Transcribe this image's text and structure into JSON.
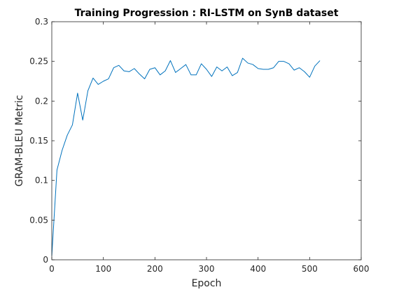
{
  "chart_data": {
    "type": "line",
    "title": "Training Progression : RI-LSTM on SynB dataset",
    "xlabel": "Epoch",
    "ylabel": "GRAM-BLEU Metric",
    "xlim": [
      0,
      600
    ],
    "ylim": [
      0,
      0.3
    ],
    "xticks": [
      0,
      100,
      200,
      300,
      400,
      500,
      600
    ],
    "yticks": [
      0,
      0.05,
      0.1,
      0.15,
      0.2,
      0.25,
      0.3
    ],
    "xtick_labels": [
      "0",
      "100",
      "200",
      "300",
      "400",
      "500",
      "600"
    ],
    "ytick_labels": [
      "0",
      "0.05",
      "0.1",
      "0.15",
      "0.2",
      "0.25",
      "0.3"
    ],
    "grid": false,
    "legend": "none",
    "series": [
      {
        "color": "#0072bd",
        "x": [
          0,
          10,
          20,
          30,
          40,
          50,
          60,
          70,
          80,
          90,
          100,
          110,
          120,
          130,
          140,
          150,
          160,
          170,
          180,
          190,
          200,
          210,
          220,
          230,
          240,
          250,
          260,
          270,
          280,
          290,
          300,
          310,
          320,
          330,
          340,
          350,
          360,
          370,
          380,
          390,
          400,
          410,
          420,
          430,
          440,
          450,
          460,
          470,
          480,
          490,
          500,
          510,
          520
        ],
        "y": [
          0.005,
          0.113,
          0.138,
          0.157,
          0.17,
          0.21,
          0.176,
          0.213,
          0.229,
          0.221,
          0.225,
          0.228,
          0.242,
          0.245,
          0.238,
          0.237,
          0.241,
          0.234,
          0.228,
          0.24,
          0.242,
          0.233,
          0.238,
          0.251,
          0.236,
          0.241,
          0.246,
          0.233,
          0.233,
          0.247,
          0.24,
          0.231,
          0.243,
          0.238,
          0.243,
          0.232,
          0.236,
          0.254,
          0.248,
          0.246,
          0.241,
          0.24,
          0.24,
          0.242,
          0.25,
          0.25,
          0.247,
          0.239,
          0.242,
          0.237,
          0.23,
          0.244,
          0.251
        ]
      }
    ]
  }
}
